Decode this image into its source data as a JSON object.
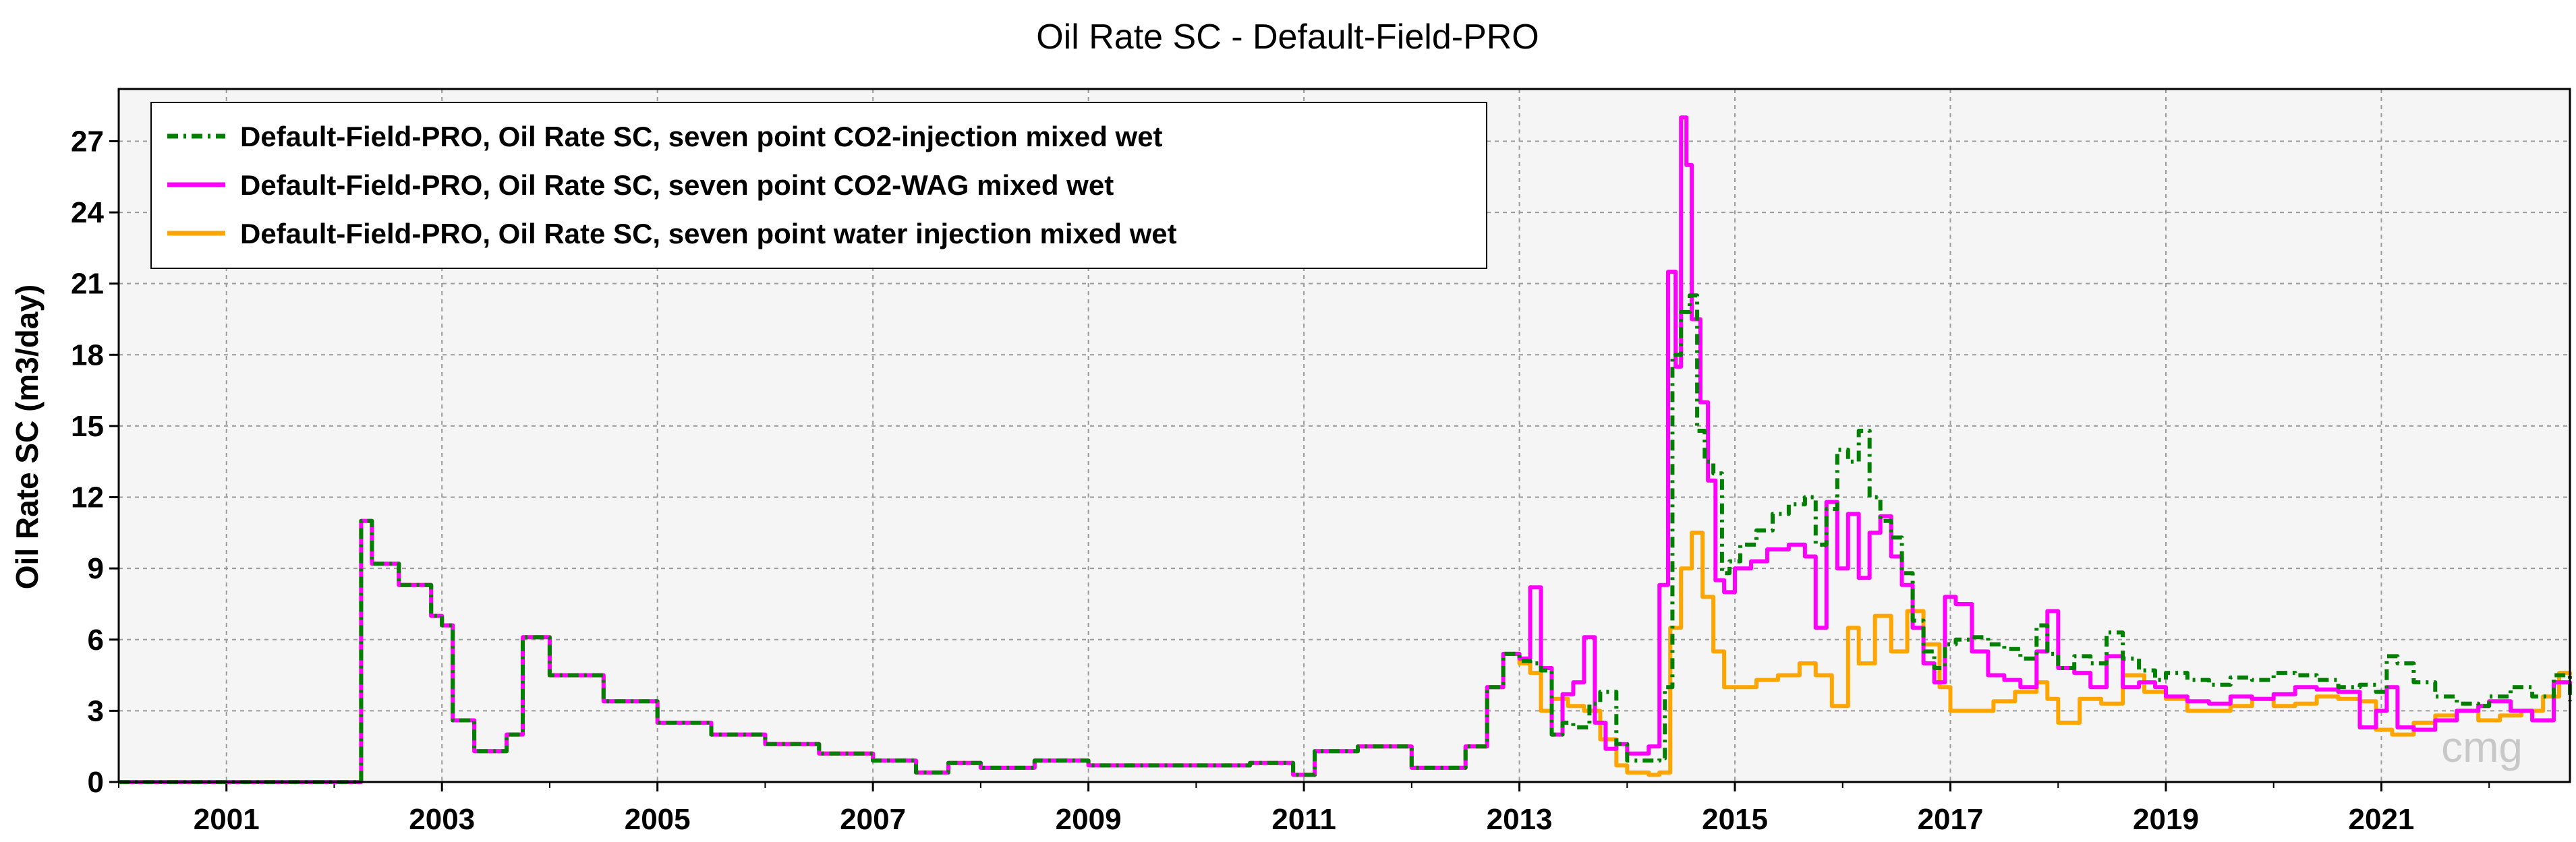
{
  "chart_data": {
    "type": "line",
    "title": "Oil Rate SC - Default-Field-PRO",
    "ylabel": "Oil Rate SC (m3/day)",
    "xlabel": "",
    "xlim": [
      2000.0,
      2022.75
    ],
    "ylim": [
      0,
      29.2
    ],
    "y_ticks": [
      0,
      3,
      6,
      9,
      12,
      15,
      18,
      21,
      24,
      27
    ],
    "x_ticks": [
      2001,
      2003,
      2005,
      2007,
      2009,
      2011,
      2013,
      2015,
      2017,
      2019,
      2021
    ],
    "grid": true,
    "legend": "top-left",
    "watermark": "cmg",
    "series": [
      {
        "name": "Default-Field-PRO, Oil Rate SC, seven point CO2-injection mixed wet",
        "color": "#008000",
        "style": "dashdot",
        "x": [
          2000.0,
          2002.15,
          2002.25,
          2002.35,
          2002.6,
          2002.9,
          2003.0,
          2003.1,
          2003.3,
          2003.6,
          2003.75,
          2004.0,
          2004.5,
          2005.0,
          2005.5,
          2006.0,
          2006.5,
          2007.0,
          2007.4,
          2007.7,
          2008.0,
          2008.5,
          2009.0,
          2009.5,
          2010.0,
          2010.5,
          2010.9,
          2011.1,
          2011.5,
          2012.0,
          2012.3,
          2012.5,
          2012.7,
          2012.85,
          2013.0,
          2013.1,
          2013.2,
          2013.3,
          2013.4,
          2013.5,
          2013.65,
          2013.75,
          2013.9,
          2014.0,
          2014.3,
          2014.35,
          2014.42,
          2014.5,
          2014.58,
          2014.65,
          2014.72,
          2014.8,
          2014.88,
          2014.95,
          2015.05,
          2015.2,
          2015.35,
          2015.5,
          2015.65,
          2015.75,
          2015.85,
          2015.95,
          2016.05,
          2016.15,
          2016.25,
          2016.35,
          2016.45,
          2016.55,
          2016.65,
          2016.75,
          2016.85,
          2016.95,
          2017.05,
          2017.2,
          2017.35,
          2017.5,
          2017.65,
          2017.8,
          2017.9,
          2018.0,
          2018.15,
          2018.3,
          2018.45,
          2018.6,
          2018.75,
          2018.9,
          2019.0,
          2019.2,
          2019.4,
          2019.6,
          2019.8,
          2020.0,
          2020.2,
          2020.4,
          2020.6,
          2020.8,
          2020.95,
          2021.05,
          2021.15,
          2021.3,
          2021.5,
          2021.7,
          2021.9,
          2022.0,
          2022.2,
          2022.4,
          2022.6,
          2022.75
        ],
        "y": [
          0.0,
          0.0,
          11.0,
          9.2,
          8.3,
          7.0,
          6.6,
          2.6,
          1.3,
          2.0,
          6.1,
          4.5,
          3.4,
          2.5,
          2.0,
          1.6,
          1.2,
          0.9,
          0.4,
          0.8,
          0.6,
          0.9,
          0.7,
          0.7,
          0.7,
          0.8,
          0.3,
          1.3,
          1.5,
          0.6,
          0.6,
          1.5,
          4.0,
          5.4,
          5.1,
          5.0,
          4.7,
          2.0,
          2.5,
          2.3,
          3.3,
          3.8,
          1.6,
          0.9,
          1.0,
          4.0,
          18.0,
          19.8,
          20.5,
          14.8,
          13.5,
          13.0,
          8.8,
          9.3,
          10.0,
          10.6,
          11.3,
          11.7,
          12.0,
          10.0,
          11.5,
          14.0,
          13.5,
          14.8,
          12.0,
          11.0,
          10.3,
          8.8,
          6.8,
          5.5,
          4.8,
          5.8,
          6.0,
          6.1,
          5.8,
          5.6,
          5.2,
          6.6,
          5.4,
          4.8,
          5.3,
          5.0,
          6.3,
          5.2,
          4.7,
          4.3,
          4.6,
          4.3,
          4.1,
          4.4,
          4.3,
          4.6,
          4.5,
          4.3,
          4.0,
          4.1,
          3.8,
          5.3,
          5.0,
          4.2,
          3.6,
          3.3,
          3.2,
          3.6,
          4.0,
          3.6,
          4.5,
          3.4
        ]
      },
      {
        "name": "Default-Field-PRO, Oil Rate SC, seven point CO2-WAG mixed wet",
        "color": "#ff00ff",
        "style": "solid",
        "x": [
          2000.0,
          2002.15,
          2002.25,
          2002.35,
          2002.6,
          2002.9,
          2003.0,
          2003.1,
          2003.3,
          2003.6,
          2003.75,
          2004.0,
          2004.5,
          2005.0,
          2005.5,
          2006.0,
          2006.5,
          2007.0,
          2007.4,
          2007.7,
          2008.0,
          2008.5,
          2009.0,
          2009.5,
          2010.0,
          2010.5,
          2010.9,
          2011.1,
          2011.5,
          2012.0,
          2012.3,
          2012.5,
          2012.7,
          2012.85,
          2013.0,
          2013.1,
          2013.2,
          2013.3,
          2013.4,
          2013.5,
          2013.6,
          2013.7,
          2013.8,
          2013.9,
          2014.0,
          2014.2,
          2014.3,
          2014.38,
          2014.45,
          2014.5,
          2014.55,
          2014.6,
          2014.68,
          2014.75,
          2014.82,
          2014.9,
          2015.0,
          2015.15,
          2015.3,
          2015.5,
          2015.65,
          2015.75,
          2015.85,
          2015.95,
          2016.05,
          2016.15,
          2016.25,
          2016.35,
          2016.45,
          2016.55,
          2016.65,
          2016.75,
          2016.85,
          2016.95,
          2017.05,
          2017.2,
          2017.35,
          2017.5,
          2017.65,
          2017.8,
          2017.9,
          2018.0,
          2018.15,
          2018.3,
          2018.45,
          2018.6,
          2018.75,
          2018.9,
          2019.0,
          2019.2,
          2019.4,
          2019.6,
          2019.8,
          2020.0,
          2020.2,
          2020.4,
          2020.6,
          2020.8,
          2020.95,
          2021.05,
          2021.15,
          2021.3,
          2021.5,
          2021.7,
          2021.9,
          2022.0,
          2022.2,
          2022.4,
          2022.6,
          2022.75
        ],
        "y": [
          0.0,
          0.0,
          11.0,
          9.2,
          8.3,
          7.0,
          6.6,
          2.6,
          1.3,
          2.0,
          6.1,
          4.5,
          3.4,
          2.5,
          2.0,
          1.6,
          1.2,
          0.9,
          0.4,
          0.8,
          0.6,
          0.9,
          0.7,
          0.7,
          0.7,
          0.8,
          0.3,
          1.3,
          1.5,
          0.6,
          0.6,
          1.5,
          4.0,
          5.4,
          5.2,
          8.2,
          4.8,
          2.0,
          3.7,
          4.2,
          6.1,
          2.5,
          1.4,
          1.6,
          1.2,
          1.5,
          8.3,
          21.5,
          17.5,
          28.0,
          26.0,
          19.5,
          16.0,
          12.7,
          8.5,
          8.0,
          9.0,
          9.3,
          9.8,
          10.0,
          9.5,
          6.5,
          11.8,
          9.0,
          11.3,
          8.6,
          10.5,
          11.2,
          9.5,
          8.3,
          6.5,
          5.0,
          4.2,
          7.8,
          7.5,
          5.5,
          4.5,
          4.3,
          4.0,
          5.5,
          7.2,
          4.8,
          4.6,
          4.0,
          5.3,
          4.0,
          4.2,
          4.0,
          3.6,
          3.4,
          3.3,
          3.6,
          3.5,
          3.7,
          4.0,
          3.9,
          3.8,
          2.3,
          3.0,
          4.0,
          2.3,
          2.2,
          2.6,
          3.0,
          3.2,
          3.4,
          3.0,
          2.6,
          4.2,
          4.0
        ]
      },
      {
        "name": "Default-Field-PRO, Oil Rate SC, seven point water injection mixed wet",
        "color": "#ffa500",
        "style": "solid",
        "x": [
          2000.0,
          2002.15,
          2002.25,
          2002.35,
          2002.6,
          2002.9,
          2003.0,
          2003.1,
          2003.3,
          2003.6,
          2003.75,
          2004.0,
          2004.5,
          2005.0,
          2005.5,
          2006.0,
          2006.5,
          2007.0,
          2007.4,
          2007.7,
          2008.0,
          2008.5,
          2009.0,
          2009.5,
          2010.0,
          2010.5,
          2010.9,
          2011.1,
          2011.5,
          2012.0,
          2012.3,
          2012.5,
          2012.7,
          2012.85,
          2013.0,
          2013.1,
          2013.2,
          2013.3,
          2013.45,
          2013.6,
          2013.75,
          2013.9,
          2014.0,
          2014.2,
          2014.3,
          2014.4,
          2014.5,
          2014.6,
          2014.7,
          2014.8,
          2014.9,
          2015.0,
          2015.2,
          2015.4,
          2015.6,
          2015.75,
          2015.9,
          2016.05,
          2016.15,
          2016.3,
          2016.45,
          2016.6,
          2016.75,
          2016.9,
          2017.0,
          2017.2,
          2017.4,
          2017.6,
          2017.8,
          2017.9,
          2018.0,
          2018.2,
          2018.4,
          2018.6,
          2018.8,
          2019.0,
          2019.2,
          2019.4,
          2019.6,
          2019.8,
          2020.0,
          2020.2,
          2020.4,
          2020.6,
          2020.8,
          2020.95,
          2021.1,
          2021.3,
          2021.5,
          2021.7,
          2021.9,
          2022.1,
          2022.3,
          2022.5,
          2022.65,
          2022.75
        ],
        "y": [
          0.0,
          0.0,
          11.0,
          9.2,
          8.3,
          7.0,
          6.6,
          2.6,
          1.3,
          2.0,
          6.1,
          4.5,
          3.4,
          2.5,
          2.0,
          1.6,
          1.2,
          0.9,
          0.4,
          0.8,
          0.6,
          0.9,
          0.7,
          0.7,
          0.7,
          0.8,
          0.3,
          1.3,
          1.5,
          0.6,
          0.6,
          1.5,
          4.0,
          5.4,
          5.0,
          4.6,
          3.0,
          3.5,
          3.2,
          3.0,
          1.8,
          0.7,
          0.4,
          0.3,
          0.4,
          6.5,
          9.0,
          10.5,
          7.8,
          5.5,
          4.0,
          4.0,
          4.3,
          4.5,
          5.0,
          4.5,
          3.2,
          6.5,
          5.0,
          7.0,
          5.5,
          7.2,
          5.8,
          4.0,
          3.0,
          3.0,
          3.4,
          3.8,
          4.2,
          3.5,
          2.5,
          3.5,
          3.3,
          4.5,
          3.8,
          3.5,
          3.0,
          3.0,
          3.2,
          3.5,
          3.2,
          3.3,
          3.6,
          3.5,
          3.4,
          2.2,
          2.0,
          2.5,
          2.8,
          3.0,
          2.6,
          2.8,
          3.0,
          3.6,
          4.6,
          4.5
        ]
      }
    ]
  }
}
